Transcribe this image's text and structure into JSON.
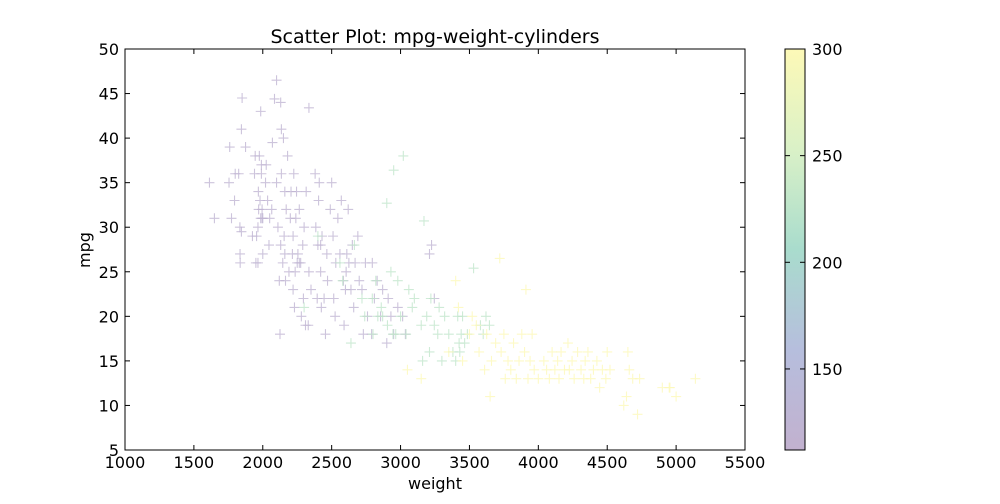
{
  "chart_data": {
    "type": "scatter",
    "title": "Scatter Plot: mpg-weight-cylinders",
    "xlabel": "weight",
    "ylabel": "mpg",
    "xlim": [
      1000,
      5500
    ],
    "ylim": [
      5,
      50
    ],
    "xticks": [
      1000,
      1500,
      2000,
      2500,
      3000,
      3500,
      4000,
      4500,
      5000,
      5500
    ],
    "yticks": [
      5,
      10,
      15,
      20,
      25,
      30,
      35,
      40,
      45,
      50
    ],
    "marker": "+",
    "grid": false,
    "colorbar": {
      "range": [
        112,
        300
      ],
      "ticks": [
        150,
        200,
        250,
        300
      ],
      "colors": [
        "#c2b1cf",
        "#b6bedd",
        "#a9dccd",
        "#daf1c7",
        "#fdf9b7"
      ]
    },
    "points": [
      [
        1613,
        35,
        123
      ],
      [
        1649,
        31,
        123
      ],
      [
        1760,
        39,
        123
      ],
      [
        1755,
        35,
        123
      ],
      [
        1773,
        31,
        123
      ],
      [
        1795,
        33,
        123
      ],
      [
        1800,
        36,
        123
      ],
      [
        1825,
        36,
        123
      ],
      [
        1834,
        30,
        123
      ],
      [
        1835,
        27,
        123
      ],
      [
        1836,
        26,
        123
      ],
      [
        1845,
        29.5,
        123
      ],
      [
        1850,
        44.5,
        123
      ],
      [
        1845,
        41,
        123
      ],
      [
        1875,
        39,
        123
      ],
      [
        1925,
        29,
        123
      ],
      [
        1940,
        36,
        123
      ],
      [
        1945,
        38,
        123
      ],
      [
        1950,
        26,
        123
      ],
      [
        1955,
        29,
        123
      ],
      [
        1965,
        26,
        123
      ],
      [
        1965,
        30,
        123
      ],
      [
        1968,
        34,
        123
      ],
      [
        1970,
        32,
        123
      ],
      [
        1975,
        38,
        123
      ],
      [
        1980,
        33,
        123
      ],
      [
        1985,
        31,
        123
      ],
      [
        1985,
        43,
        123
      ],
      [
        1990,
        36,
        123
      ],
      [
        1990,
        37,
        123
      ],
      [
        1995,
        31,
        123
      ],
      [
        1995,
        32,
        123
      ],
      [
        2000,
        27,
        123
      ],
      [
        2000,
        31,
        123
      ],
      [
        2020,
        35,
        123
      ],
      [
        2025,
        37,
        123
      ],
      [
        2035,
        33,
        123
      ],
      [
        2045,
        28,
        123
      ],
      [
        2050,
        31,
        123
      ],
      [
        2065,
        32,
        123
      ],
      [
        2070,
        39.5,
        123
      ],
      [
        2085,
        44.4,
        123
      ],
      [
        2100,
        35,
        123
      ],
      [
        2100,
        46.5,
        123
      ],
      [
        2110,
        30,
        123
      ],
      [
        2120,
        24,
        123
      ],
      [
        2125,
        18,
        123
      ],
      [
        2130,
        28,
        123
      ],
      [
        2130,
        44,
        123
      ],
      [
        2135,
        36,
        123
      ],
      [
        2135,
        41,
        123
      ],
      [
        2145,
        26,
        123
      ],
      [
        2150,
        40,
        123
      ],
      [
        2155,
        29,
        123
      ],
      [
        2160,
        27,
        123
      ],
      [
        2160,
        34,
        123
      ],
      [
        2165,
        24,
        123
      ],
      [
        2170,
        32,
        123
      ],
      [
        2180,
        38,
        123
      ],
      [
        2190,
        25,
        123
      ],
      [
        2200,
        31,
        123
      ],
      [
        2205,
        34,
        123
      ],
      [
        2215,
        27,
        123
      ],
      [
        2220,
        23,
        123
      ],
      [
        2220,
        29,
        123
      ],
      [
        2225,
        36,
        123
      ],
      [
        2230,
        21,
        123
      ],
      [
        2235,
        25,
        123
      ],
      [
        2240,
        31,
        123
      ],
      [
        2245,
        34,
        123
      ],
      [
        2250,
        26,
        123
      ],
      [
        2255,
        27,
        123
      ],
      [
        2265,
        26,
        123
      ],
      [
        2265,
        32,
        123
      ],
      [
        2275,
        26,
        123
      ],
      [
        2280,
        20,
        123
      ],
      [
        2290,
        28,
        123
      ],
      [
        2295,
        22,
        123
      ],
      [
        2300,
        30,
        123
      ],
      [
        2310,
        19,
        123
      ],
      [
        2315,
        34,
        123
      ],
      [
        2330,
        19,
        123
      ],
      [
        2335,
        25,
        123
      ],
      [
        2335,
        43.4,
        123
      ],
      [
        2350,
        23,
        123
      ],
      [
        2380,
        36,
        123
      ],
      [
        2385,
        30,
        123
      ],
      [
        2395,
        22,
        123
      ],
      [
        2400,
        28,
        123
      ],
      [
        2405,
        33,
        123
      ],
      [
        2410,
        35,
        123
      ],
      [
        2420,
        25,
        123
      ],
      [
        2420,
        28,
        123
      ],
      [
        2425,
        21,
        123
      ],
      [
        2430,
        29,
        123
      ],
      [
        2445,
        22,
        123
      ],
      [
        2455,
        18,
        123
      ],
      [
        2465,
        27,
        123
      ],
      [
        2470,
        24,
        123
      ],
      [
        2490,
        32,
        123
      ],
      [
        2500,
        35,
        123
      ],
      [
        2510,
        29,
        123
      ],
      [
        2515,
        22,
        123
      ],
      [
        2525,
        20,
        123
      ],
      [
        2530,
        26,
        123
      ],
      [
        2545,
        31,
        123
      ],
      [
        2560,
        27,
        123
      ],
      [
        2570,
        33,
        123
      ],
      [
        2585,
        24,
        123
      ],
      [
        2590,
        19,
        123
      ],
      [
        2600,
        23,
        123
      ],
      [
        2605,
        25,
        123
      ],
      [
        2610,
        27,
        123
      ],
      [
        2620,
        32,
        123
      ],
      [
        2625,
        26,
        123
      ],
      [
        2640,
        23,
        123
      ],
      [
        2650,
        28,
        123
      ],
      [
        2660,
        21,
        123
      ],
      [
        2670,
        26,
        123
      ],
      [
        2690,
        29,
        123
      ],
      [
        2700,
        24,
        123
      ],
      [
        2720,
        23,
        123
      ],
      [
        2730,
        18,
        123
      ],
      [
        2745,
        26,
        123
      ],
      [
        2760,
        20,
        123
      ],
      [
        2790,
        18,
        123
      ],
      [
        2795,
        26,
        123
      ],
      [
        2810,
        22,
        123
      ],
      [
        2830,
        24,
        123
      ],
      [
        2855,
        20,
        123
      ],
      [
        2870,
        23,
        123
      ],
      [
        2900,
        17,
        123
      ],
      [
        2910,
        22,
        123
      ],
      [
        2930,
        20,
        123
      ],
      [
        2950,
        18,
        123
      ],
      [
        2980,
        21,
        123
      ],
      [
        3015,
        20,
        123
      ],
      [
        3035,
        18,
        123
      ],
      [
        3210,
        27,
        123
      ],
      [
        3225,
        28,
        123
      ],
      [
        3245,
        22,
        123
      ],
      [
        2300,
        21,
        228
      ],
      [
        2400,
        29,
        228
      ],
      [
        2560,
        26,
        228
      ],
      [
        2580,
        24,
        228
      ],
      [
        2640,
        17,
        228
      ],
      [
        2665,
        28,
        228
      ],
      [
        2720,
        22,
        228
      ],
      [
        2740,
        20,
        228
      ],
      [
        2795,
        22,
        228
      ],
      [
        2800,
        18,
        228
      ],
      [
        2820,
        24,
        228
      ],
      [
        2835,
        20,
        228
      ],
      [
        2860,
        21,
        228
      ],
      [
        2870,
        20,
        228
      ],
      [
        2900,
        32.7,
        228
      ],
      [
        2905,
        19,
        228
      ],
      [
        2930,
        25,
        228
      ],
      [
        2945,
        18,
        228
      ],
      [
        2950,
        36.4,
        228
      ],
      [
        2965,
        18,
        228
      ],
      [
        2980,
        24,
        228
      ],
      [
        3000,
        20,
        228
      ],
      [
        3020,
        38,
        228
      ],
      [
        3040,
        18,
        228
      ],
      [
        3060,
        23,
        228
      ],
      [
        3085,
        21,
        228
      ],
      [
        3100,
        22,
        228
      ],
      [
        3150,
        19,
        228
      ],
      [
        3160,
        15,
        228
      ],
      [
        3170,
        30.7,
        228
      ],
      [
        3190,
        20,
        228
      ],
      [
        3210,
        16,
        228
      ],
      [
        3220,
        22,
        228
      ],
      [
        3245,
        19,
        228
      ],
      [
        3270,
        18,
        228
      ],
      [
        3280,
        21,
        228
      ],
      [
        3300,
        15,
        228
      ],
      [
        3320,
        20,
        228
      ],
      [
        3350,
        18,
        228
      ],
      [
        3380,
        16,
        228
      ],
      [
        3400,
        15,
        228
      ],
      [
        3415,
        20,
        228
      ],
      [
        3425,
        17,
        228
      ],
      [
        3430,
        16,
        228
      ],
      [
        3440,
        18,
        228
      ],
      [
        3450,
        20,
        228
      ],
      [
        3465,
        17,
        228
      ],
      [
        3485,
        18,
        228
      ],
      [
        3530,
        25.4,
        228
      ],
      [
        3580,
        19,
        228
      ],
      [
        3600,
        18,
        228
      ],
      [
        3620,
        20,
        228
      ],
      [
        3645,
        19,
        228
      ],
      [
        3050,
        14,
        304
      ],
      [
        3150,
        13,
        304
      ],
      [
        3350,
        16,
        304
      ],
      [
        3400,
        24,
        304
      ],
      [
        3420,
        21,
        304
      ],
      [
        3450,
        15,
        304
      ],
      [
        3500,
        18,
        304
      ],
      [
        3520,
        20,
        304
      ],
      [
        3550,
        19,
        304
      ],
      [
        3570,
        16,
        304
      ],
      [
        3610,
        14,
        304
      ],
      [
        3625,
        18,
        304
      ],
      [
        3650,
        11,
        304
      ],
      [
        3660,
        15,
        304
      ],
      [
        3690,
        17,
        304
      ],
      [
        3720,
        26.5,
        304
      ],
      [
        3730,
        16,
        304
      ],
      [
        3750,
        18,
        304
      ],
      [
        3760,
        13,
        304
      ],
      [
        3780,
        15,
        304
      ],
      [
        3800,
        14,
        304
      ],
      [
        3820,
        17,
        304
      ],
      [
        3840,
        13,
        304
      ],
      [
        3860,
        15,
        304
      ],
      [
        3880,
        18,
        304
      ],
      [
        3900,
        16,
        304
      ],
      [
        3910,
        23,
        304
      ],
      [
        3925,
        13,
        304
      ],
      [
        3940,
        15,
        304
      ],
      [
        3955,
        18,
        304
      ],
      [
        3970,
        14,
        304
      ],
      [
        4000,
        13,
        304
      ],
      [
        4040,
        15,
        304
      ],
      [
        4060,
        14,
        304
      ],
      [
        4080,
        13,
        304
      ],
      [
        4100,
        16,
        304
      ],
      [
        4120,
        14,
        304
      ],
      [
        4140,
        15,
        304
      ],
      [
        4150,
        13,
        304
      ],
      [
        4165,
        16,
        304
      ],
      [
        4190,
        14,
        304
      ],
      [
        4215,
        17,
        304
      ],
      [
        4225,
        14,
        304
      ],
      [
        4245,
        15,
        304
      ],
      [
        4260,
        13,
        304
      ],
      [
        4285,
        16,
        304
      ],
      [
        4310,
        14,
        304
      ],
      [
        4330,
        13,
        304
      ],
      [
        4340,
        15,
        304
      ],
      [
        4360,
        16,
        304
      ],
      [
        4380,
        13,
        304
      ],
      [
        4400,
        14,
        304
      ],
      [
        4425,
        15,
        304
      ],
      [
        4445,
        12,
        304
      ],
      [
        4465,
        14,
        304
      ],
      [
        4490,
        13,
        304
      ],
      [
        4500,
        16,
        304
      ],
      [
        4520,
        14,
        304
      ],
      [
        4620,
        10,
        304
      ],
      [
        4640,
        11,
        304
      ],
      [
        4650,
        16,
        304
      ],
      [
        4660,
        14,
        304
      ],
      [
        4685,
        13,
        304
      ],
      [
        4720,
        9,
        304
      ],
      [
        4735,
        13,
        304
      ],
      [
        4900,
        12,
        304
      ],
      [
        4950,
        12,
        304
      ],
      [
        4955,
        12,
        304
      ],
      [
        5000,
        11,
        304
      ],
      [
        5140,
        13,
        304
      ]
    ]
  }
}
